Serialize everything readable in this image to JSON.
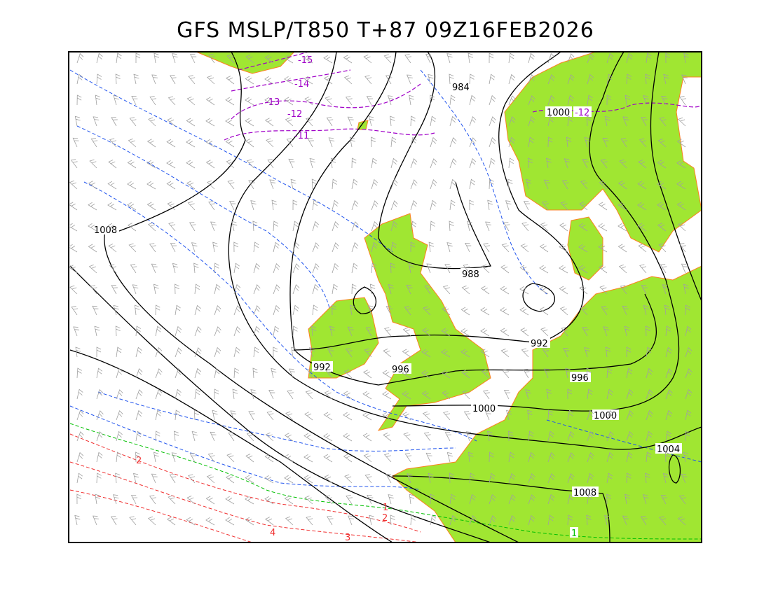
{
  "title": "GFS MSLP/T850 T+87 09Z16FEB2026",
  "colors": {
    "land": "#a0e632",
    "coastline": "#ff8020",
    "isobar": "#000000",
    "t850_negative": "#a000c8",
    "t850_cold": "#2255ee",
    "t850_zero": "#00c000",
    "t850_positive": "#f03030",
    "wind_barbs": "#a0a0a0"
  },
  "isobar_labels": [
    "984",
    "988",
    "992",
    "992",
    "996",
    "996",
    "1000",
    "1000",
    "1000",
    "1004",
    "1008",
    "1008"
  ],
  "temperature_labels": [
    "-15",
    "-14",
    "-13",
    "-12",
    "-12",
    "-11",
    "1",
    "1",
    "2",
    "2",
    "3",
    "4"
  ]
}
